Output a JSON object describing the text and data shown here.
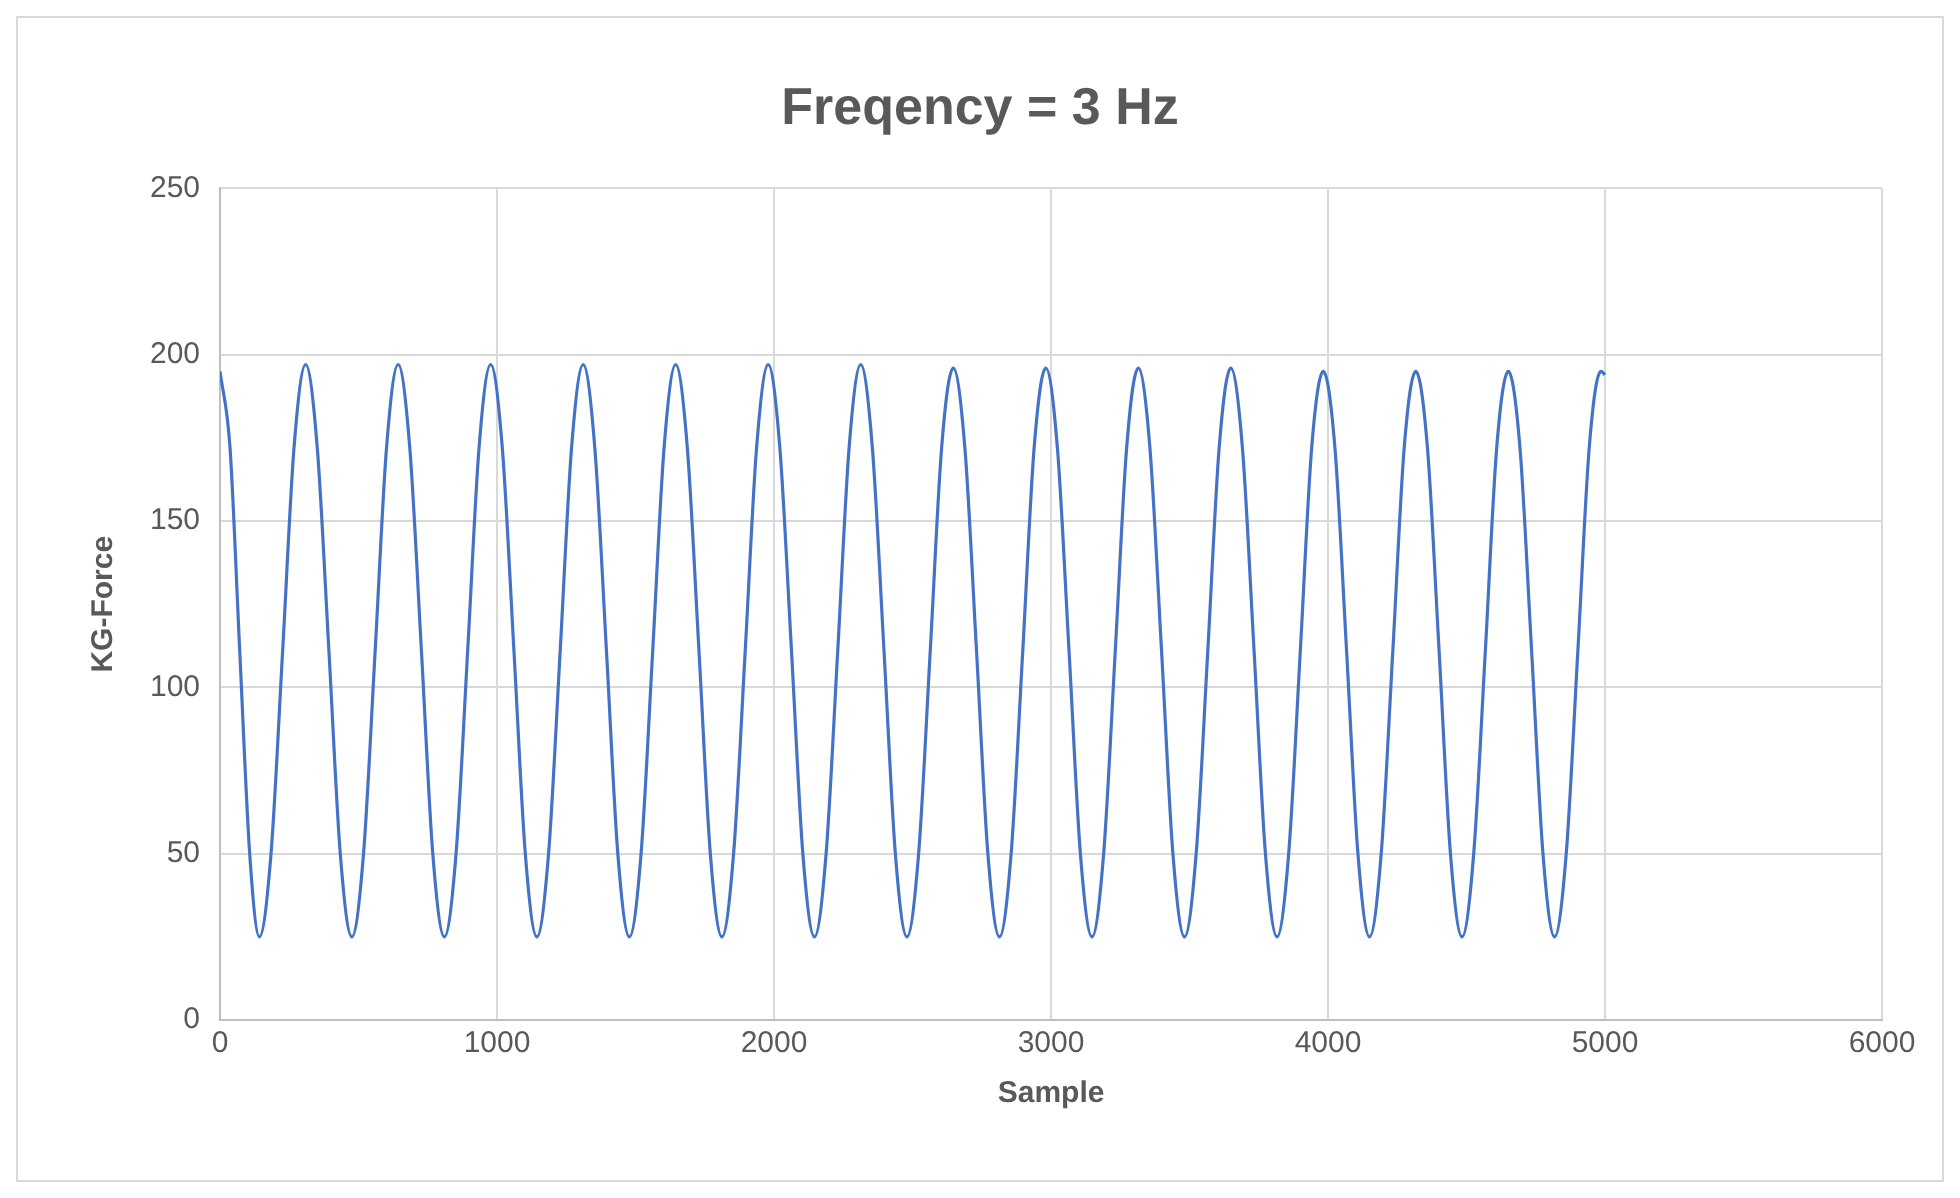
{
  "chart_data": {
    "type": "line",
    "title": "Freqency = 3 Hz",
    "xlabel": "Sample",
    "ylabel": "KG-Force",
    "xlim": [
      0,
      6000
    ],
    "xticks": [
      0,
      1000,
      2000,
      3000,
      4000,
      5000,
      6000
    ],
    "ylim": [
      0,
      250
    ],
    "yticks": [
      0,
      50,
      100,
      150,
      200,
      250
    ],
    "grid": true,
    "legend": false,
    "marker": "none",
    "line_style": "solid",
    "series": [
      {
        "color": "#4472c4",
        "x": [
          0,
          36,
          71,
          107,
          142,
          184,
          226,
          267,
          309,
          351,
          393,
          434,
          476,
          518,
          560,
          601,
          643,
          685,
          727,
          768,
          810,
          852,
          894,
          935,
          977,
          1019,
          1061,
          1102,
          1144,
          1186,
          1228,
          1269,
          1311,
          1353,
          1395,
          1436,
          1478,
          1520,
          1562,
          1603,
          1645,
          1687,
          1729,
          1770,
          1812,
          1854,
          1896,
          1937,
          1979,
          2021,
          2063,
          2104,
          2146,
          2188,
          2230,
          2271,
          2313,
          2355,
          2397,
          2438,
          2480,
          2522,
          2564,
          2605,
          2647,
          2689,
          2731,
          2772,
          2814,
          2856,
          2898,
          2939,
          2981,
          3023,
          3065,
          3106,
          3148,
          3190,
          3232,
          3273,
          3315,
          3357,
          3399,
          3440,
          3482,
          3524,
          3566,
          3607,
          3649,
          3691,
          3733,
          3774,
          3816,
          3858,
          3900,
          3941,
          3983,
          4025,
          4067,
          4108,
          4150,
          4192,
          4234,
          4275,
          4317,
          4359,
          4401,
          4442,
          4484,
          4526,
          4568,
          4609,
          4651,
          4693,
          4735,
          4776,
          4818,
          4860,
          4902,
          4943,
          4985,
          5000
        ],
        "values": [
          195,
          172,
          111,
          50,
          25,
          50,
          111,
          172,
          197,
          172,
          111,
          50,
          25,
          50,
          111,
          172,
          197,
          172,
          111,
          50,
          25,
          50,
          111,
          172,
          197,
          172,
          111,
          50,
          25,
          50,
          111,
          172,
          197,
          172,
          111,
          50,
          25,
          50,
          111,
          172,
          197,
          172,
          111,
          50,
          25,
          50,
          111,
          172,
          197,
          172,
          111,
          50,
          25,
          50,
          111,
          172,
          197,
          172,
          111,
          50,
          25,
          50,
          111,
          172,
          196,
          172,
          111,
          50,
          25,
          50,
          111,
          172,
          196,
          172,
          111,
          50,
          25,
          50,
          111,
          172,
          196,
          172,
          111,
          50,
          25,
          50,
          111,
          172,
          196,
          172,
          111,
          50,
          25,
          50,
          111,
          172,
          195,
          172,
          111,
          50,
          25,
          50,
          111,
          172,
          195,
          172,
          111,
          50,
          25,
          50,
          111,
          172,
          195,
          172,
          111,
          50,
          25,
          50,
          111,
          172,
          195,
          194
        ]
      }
    ]
  }
}
